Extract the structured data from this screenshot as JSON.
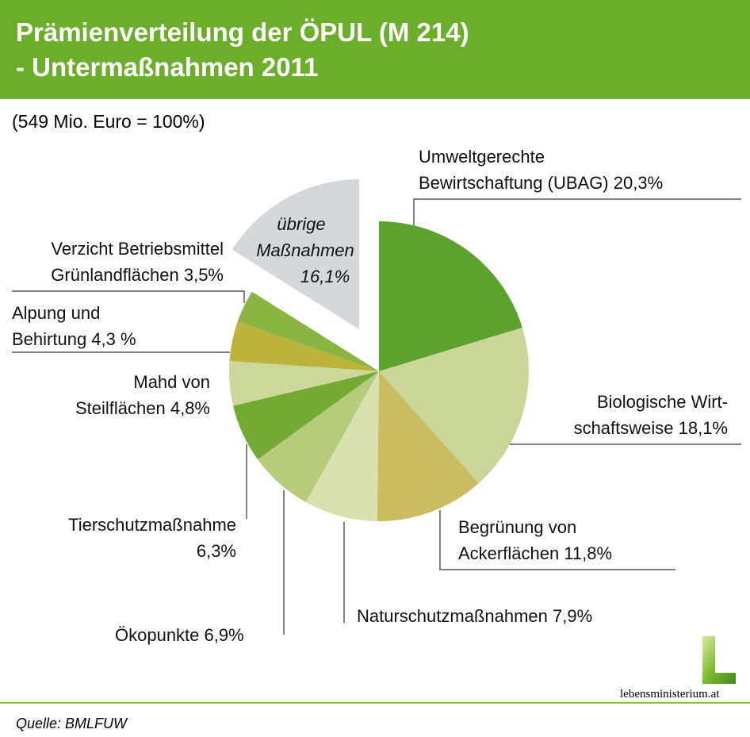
{
  "title_line1": "Prämienverteilung der ÖPUL (M 214)",
  "title_line2": "- Untermaßnahmen 2011",
  "subtitle": "(549 Mio. Euro = 100%)",
  "source": "Quelle: BMLFUW",
  "logo_text": "lebensministerium.at",
  "chart_data": {
    "type": "pie",
    "title": "Prämienverteilung der ÖPUL (M 214) - Untermaßnahmen 2011",
    "total": "549 Mio. Euro = 100%",
    "start": "12 o'clock, clockwise",
    "slices": [
      {
        "name": "Umweltgerechte Bewirtschaftung (UBAG)",
        "value": 20.3,
        "color": "#5ca22f",
        "label1": "Umweltgerechte",
        "label2": "Bewirtschaftung (UBAG) 20,3%"
      },
      {
        "name": "Biologische Wirtschaftsweise",
        "value": 18.1,
        "color": "#c9d698",
        "label1": "Biologische Wirt-",
        "label2": "schaftsweise 18,1%"
      },
      {
        "name": "Begrünung von Ackerflächen",
        "value": 11.8,
        "color": "#c8bd62",
        "label1": "Begrünung von",
        "label2": "Ackerflächen 11,8%"
      },
      {
        "name": "Naturschutzmaßnahmen",
        "value": 7.9,
        "color": "#d9e1ae",
        "label1": "Naturschutzmaßnahmen 7,9%",
        "label2": ""
      },
      {
        "name": "Ökopunkte",
        "value": 6.9,
        "color": "#b6cc7b",
        "label1": "Ökopunkte 6,9%",
        "label2": ""
      },
      {
        "name": "Tierschutzmaßnahme",
        "value": 6.3,
        "color": "#72aa33",
        "label1": "Tierschutzmaßnahme",
        "label2": "6,3%"
      },
      {
        "name": "Mahd von Steilflächen",
        "value": 4.8,
        "color": "#ccd89a",
        "label1": "Mahd von",
        "label2": "Steilflächen 4,8%"
      },
      {
        "name": "Alpung und Behirtung",
        "value": 4.3,
        "color": "#bab43a",
        "label1": "Alpung und",
        "label2": "Behirtung 4,3 %"
      },
      {
        "name": "Verzicht Betriebsmittel Grünlandflächen",
        "value": 3.5,
        "color": "#8bb443",
        "label1": "Verzicht Betriebsmittel",
        "label2": "Grünlandflächen 3,5%"
      },
      {
        "name": "übrige Maßnahmen",
        "value": 16.1,
        "color": "#d6d7db",
        "label1": "übrige",
        "label2": "Maßnahmen",
        "label3": "16,1%",
        "exploded": true
      }
    ]
  }
}
